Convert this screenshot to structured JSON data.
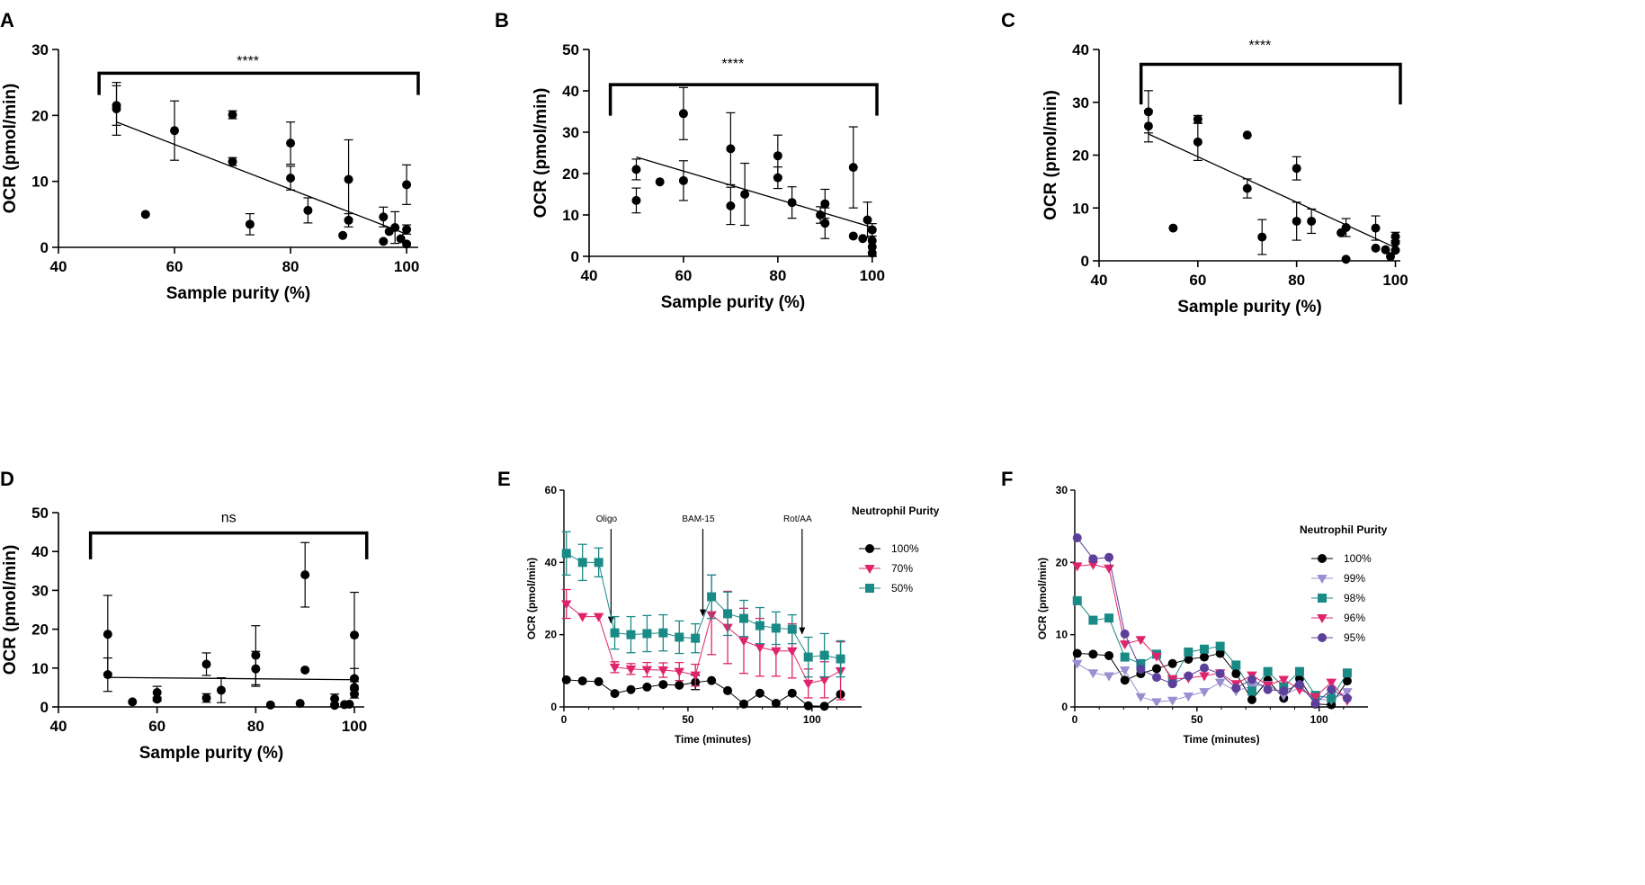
{
  "chart_data": [
    {
      "panel": "A",
      "type": "scatter",
      "xlabel": "Sample purity (%)",
      "ylabel": "OCR (pmol/min)",
      "xlim": [
        40,
        102
      ],
      "ylim": [
        0,
        30
      ],
      "xticks": [
        40,
        60,
        80,
        100
      ],
      "yticks": [
        0,
        10,
        20,
        30
      ],
      "significance": "****",
      "points": [
        {
          "x": 50,
          "y": 21.5,
          "err": 3
        },
        {
          "x": 50,
          "y": 21.0,
          "err": 4
        },
        {
          "x": 55,
          "y": 5.0,
          "err": 0
        },
        {
          "x": 60,
          "y": 17.7,
          "err": 4.5
        },
        {
          "x": 70,
          "y": 20.1,
          "err": 0.6
        },
        {
          "x": 70,
          "y": 13.0,
          "err": 0.6
        },
        {
          "x": 73,
          "y": 3.5,
          "err": 1.6
        },
        {
          "x": 80,
          "y": 15.8,
          "err": 3.2
        },
        {
          "x": 80,
          "y": 10.5,
          "err": 1.8
        },
        {
          "x": 83,
          "y": 5.6,
          "err": 1.9
        },
        {
          "x": 89,
          "y": 1.8,
          "err": 0
        },
        {
          "x": 90,
          "y": 10.3,
          "err": 6
        },
        {
          "x": 90,
          "y": 4.1,
          "err": 1
        },
        {
          "x": 96,
          "y": 4.6,
          "err": 1.5
        },
        {
          "x": 96,
          "y": 0.9,
          "err": 0
        },
        {
          "x": 97,
          "y": 2.4,
          "err": 0
        },
        {
          "x": 98,
          "y": 3.0,
          "err": 2.4
        },
        {
          "x": 99,
          "y": 1.3,
          "err": 0
        },
        {
          "x": 100,
          "y": 9.5,
          "err": 3
        },
        {
          "x": 100,
          "y": 2.7,
          "err": 0.7
        },
        {
          "x": 100,
          "y": 0.5,
          "err": 0
        }
      ],
      "fit": [
        [
          50,
          19.0
        ],
        [
          100,
          2.0
        ]
      ]
    },
    {
      "panel": "B",
      "type": "scatter",
      "xlabel": "Sample purity (%)",
      "ylabel": "OCR (pmol/min)",
      "xlim": [
        40,
        101
      ],
      "ylim": [
        0,
        50
      ],
      "xticks": [
        40,
        60,
        80,
        100
      ],
      "yticks": [
        0,
        10,
        20,
        30,
        40,
        50
      ],
      "significance": "****",
      "points": [
        {
          "x": 50,
          "y": 21.0,
          "err": 2.5
        },
        {
          "x": 50,
          "y": 13.5,
          "err": 3
        },
        {
          "x": 55,
          "y": 18.0,
          "err": 0
        },
        {
          "x": 60,
          "y": 34.5,
          "err": 6.3
        },
        {
          "x": 60,
          "y": 18.3,
          "err": 4.8
        },
        {
          "x": 70,
          "y": 26.0,
          "err": 8.7
        },
        {
          "x": 70,
          "y": 12.2,
          "err": 4.5
        },
        {
          "x": 73,
          "y": 15.0,
          "err": 7.5
        },
        {
          "x": 80,
          "y": 24.3,
          "err": 5
        },
        {
          "x": 80,
          "y": 19.0,
          "err": 2.6
        },
        {
          "x": 83,
          "y": 13.0,
          "err": 3.8
        },
        {
          "x": 89,
          "y": 10.0,
          "err": 2
        },
        {
          "x": 90,
          "y": 12.7,
          "err": 3.5
        },
        {
          "x": 90,
          "y": 8.0,
          "err": 3.7
        },
        {
          "x": 96,
          "y": 21.5,
          "err": 9.8
        },
        {
          "x": 96,
          "y": 4.9,
          "err": 0
        },
        {
          "x": 98,
          "y": 4.3,
          "err": 0
        },
        {
          "x": 99,
          "y": 8.8,
          "err": 4.3
        },
        {
          "x": 100,
          "y": 6.4,
          "err": 1.5
        },
        {
          "x": 100,
          "y": 3.8,
          "err": 0
        },
        {
          "x": 100,
          "y": 2.3,
          "err": 0
        },
        {
          "x": 100,
          "y": 0.8,
          "err": 0
        }
      ],
      "fit": [
        [
          50,
          24.0
        ],
        [
          100,
          7.0
        ]
      ]
    },
    {
      "panel": "C",
      "type": "scatter",
      "xlabel": "Sample purity (%)",
      "ylabel": "OCR (pmol/min)",
      "xlim": [
        40,
        101
      ],
      "ylim": [
        0,
        40
      ],
      "xticks": [
        40,
        60,
        80,
        100
      ],
      "yticks": [
        0,
        10,
        20,
        30,
        40
      ],
      "significance": "****",
      "points": [
        {
          "x": 50,
          "y": 28.2,
          "err": 4
        },
        {
          "x": 50,
          "y": 25.5,
          "err": 3
        },
        {
          "x": 55,
          "y": 6.2,
          "err": 0
        },
        {
          "x": 60,
          "y": 26.8,
          "err": 0.7
        },
        {
          "x": 60,
          "y": 22.5,
          "err": 3.5
        },
        {
          "x": 70,
          "y": 23.8,
          "err": 0
        },
        {
          "x": 70,
          "y": 13.7,
          "err": 1.8
        },
        {
          "x": 73,
          "y": 4.5,
          "err": 3.3
        },
        {
          "x": 80,
          "y": 17.5,
          "err": 2.2
        },
        {
          "x": 80,
          "y": 7.5,
          "err": 3.6
        },
        {
          "x": 83,
          "y": 7.5,
          "err": 2.3
        },
        {
          "x": 89,
          "y": 5.3,
          "err": 0
        },
        {
          "x": 90,
          "y": 6.3,
          "err": 1.7
        },
        {
          "x": 90,
          "y": 0.3,
          "err": 0
        },
        {
          "x": 96,
          "y": 6.2,
          "err": 2.3
        },
        {
          "x": 96,
          "y": 2.4,
          "err": 0
        },
        {
          "x": 98,
          "y": 2.1,
          "err": 0
        },
        {
          "x": 99,
          "y": 0.8,
          "err": 0
        },
        {
          "x": 100,
          "y": 4.6,
          "err": 0.8
        },
        {
          "x": 100,
          "y": 3.5,
          "err": 0
        },
        {
          "x": 100,
          "y": 2.0,
          "err": 0
        }
      ],
      "fit": [
        [
          50,
          24.0
        ],
        [
          100,
          2.5
        ]
      ]
    },
    {
      "panel": "D",
      "type": "scatter",
      "xlabel": "Sample purity (%)",
      "ylabel": "OCR (pmol/min)",
      "xlim": [
        40,
        102
      ],
      "ylim": [
        0,
        50
      ],
      "xticks": [
        40,
        60,
        80,
        100
      ],
      "yticks": [
        0,
        10,
        20,
        30,
        40,
        50
      ],
      "significance": "ns",
      "points": [
        {
          "x": 50,
          "y": 18.7,
          "err": 10
        },
        {
          "x": 50,
          "y": 8.3,
          "err": 4.3
        },
        {
          "x": 55,
          "y": 1.3,
          "err": 0
        },
        {
          "x": 60,
          "y": 3.7,
          "err": 1.6
        },
        {
          "x": 60,
          "y": 2.0,
          "err": 0.5
        },
        {
          "x": 70,
          "y": 11.0,
          "err": 2.9
        },
        {
          "x": 70,
          "y": 2.3,
          "err": 1.1
        },
        {
          "x": 73,
          "y": 4.3,
          "err": 3.2
        },
        {
          "x": 80,
          "y": 13.3,
          "err": 7.6
        },
        {
          "x": 80,
          "y": 9.8,
          "err": 4.5
        },
        {
          "x": 83,
          "y": 0.5,
          "err": 0
        },
        {
          "x": 89,
          "y": 0.9,
          "err": 0
        },
        {
          "x": 90,
          "y": 34.0,
          "err": 8.3
        },
        {
          "x": 90,
          "y": 9.5,
          "err": 0
        },
        {
          "x": 96,
          "y": 2.1,
          "err": 1.2
        },
        {
          "x": 96,
          "y": 0.4,
          "err": 0
        },
        {
          "x": 98,
          "y": 0.6,
          "err": 0
        },
        {
          "x": 99,
          "y": 0.7,
          "err": 0
        },
        {
          "x": 100,
          "y": 18.5,
          "err": 11
        },
        {
          "x": 100,
          "y": 7.3,
          "err": 2.6
        },
        {
          "x": 100,
          "y": 5.0,
          "err": 1.5
        },
        {
          "x": 100,
          "y": 3.3,
          "err": 1
        }
      ],
      "fit": [
        [
          50,
          7.6
        ],
        [
          100,
          7.0
        ]
      ]
    },
    {
      "panel": "E",
      "type": "line",
      "xlabel": "Time (minutes)",
      "ylabel": "OCR (pmol/min)",
      "xlim": [
        0,
        120
      ],
      "ylim": [
        0,
        60
      ],
      "xticks": [
        0,
        50,
        100
      ],
      "yticks": [
        0,
        20,
        40,
        60
      ],
      "legend_title": "Neutrophil Purity",
      "annotations": [
        {
          "label": "Oligo",
          "x": 19
        },
        {
          "label": "BAM-15",
          "x": 56
        },
        {
          "label": "Rot/AA",
          "x": 96
        }
      ],
      "x": [
        1,
        7.5,
        14,
        20.5,
        27,
        33.5,
        40,
        46.5,
        53,
        59.5,
        66,
        72.5,
        79,
        85.5,
        92,
        98.5,
        105,
        111.5
      ],
      "series": [
        {
          "name": "100%",
          "color": "#000000",
          "marker": "circle",
          "values": [
            7.5,
            7.2,
            7.0,
            3.7,
            4.8,
            5.5,
            6.2,
            6.0,
            6.8,
            7.3,
            4.5,
            0.8,
            3.8,
            1.0,
            3.8,
            0.3,
            0.2,
            3.5
          ],
          "err": [
            0,
            0,
            0,
            0,
            0,
            0,
            0,
            0,
            2,
            0,
            0,
            0,
            0,
            0,
            0,
            0,
            0,
            0
          ]
        },
        {
          "name": "70%",
          "color": "#e0246b",
          "marker": "triangle-down",
          "values": [
            28.5,
            25.0,
            25.0,
            11.0,
            10.5,
            10.3,
            10.2,
            9.8,
            8.8,
            25.5,
            22.0,
            18.3,
            16.5,
            15.5,
            15.5,
            6.5,
            7.5,
            10.0
          ],
          "err": [
            4,
            0,
            0,
            1.5,
            1.5,
            2,
            2,
            2.5,
            3,
            11,
            10,
            9,
            8,
            7,
            7.5,
            4,
            5,
            8
          ]
        },
        {
          "name": "50%",
          "color": "#1a8a86",
          "marker": "square",
          "values": [
            42.5,
            40.0,
            40.0,
            20.5,
            20.0,
            20.3,
            20.5,
            19.3,
            19.0,
            30.5,
            25.8,
            24.5,
            22.5,
            21.8,
            21.5,
            13.8,
            14.3,
            13.3
          ],
          "err": [
            6,
            5,
            4,
            4.5,
            5,
            5,
            5,
            4.5,
            4,
            6,
            6,
            5,
            5,
            4.5,
            4,
            5.5,
            6,
            5
          ]
        }
      ]
    },
    {
      "panel": "F",
      "type": "line",
      "xlabel": "Time (minutes)",
      "ylabel": "OCR (pmol/min)",
      "xlim": [
        0,
        120
      ],
      "ylim": [
        0,
        30
      ],
      "xticks": [
        0,
        50,
        100
      ],
      "yticks": [
        0,
        10,
        20,
        30
      ],
      "legend_title": "Neutrophil Purity",
      "x": [
        1,
        7.5,
        14,
        20.5,
        27,
        33.5,
        40,
        46.5,
        53,
        59.5,
        66,
        72.5,
        79,
        85.5,
        92,
        98.5,
        105,
        111.5
      ],
      "series": [
        {
          "name": "100%",
          "color": "#000000",
          "marker": "circle",
          "values": [
            7.4,
            7.3,
            7.1,
            3.7,
            4.6,
            5.3,
            6.0,
            6.6,
            6.9,
            7.4,
            4.6,
            1.0,
            3.7,
            1.2,
            3.9,
            0.4,
            0.3,
            3.6
          ]
        },
        {
          "name": "99%",
          "color": "#9b8fd2",
          "marker": "triangle-down",
          "values": [
            6.0,
            4.7,
            4.3,
            5.1,
            1.4,
            0.7,
            0.9,
            1.5,
            2.1,
            3.4,
            2.2,
            2.9,
            3.1,
            1.6,
            2.7,
            1.0,
            1.0,
            2.1
          ]
        },
        {
          "name": "98%",
          "color": "#1a8a86",
          "marker": "square",
          "values": [
            14.7,
            12.0,
            12.3,
            6.9,
            6.0,
            7.3,
            3.6,
            7.6,
            8.0,
            8.4,
            5.8,
            2.2,
            4.9,
            2.8,
            4.9,
            1.6,
            1.2,
            4.7
          ]
        },
        {
          "name": "96%",
          "color": "#e0246b",
          "marker": "triangle-down",
          "values": [
            19.5,
            19.7,
            19.2,
            8.7,
            9.3,
            7.0,
            3.9,
            4.0,
            4.3,
            4.7,
            3.2,
            4.4,
            3.0,
            3.8,
            2.4,
            1.4,
            3.4,
            0.9
          ]
        },
        {
          "name": "95%",
          "color": "#5b3f9a",
          "marker": "circle",
          "values": [
            23.4,
            20.5,
            20.7,
            10.1,
            5.2,
            4.1,
            3.2,
            4.3,
            5.4,
            4.6,
            2.6,
            3.8,
            2.4,
            2.2,
            3.1,
            0.5,
            2.4,
            1.2
          ]
        }
      ]
    }
  ]
}
